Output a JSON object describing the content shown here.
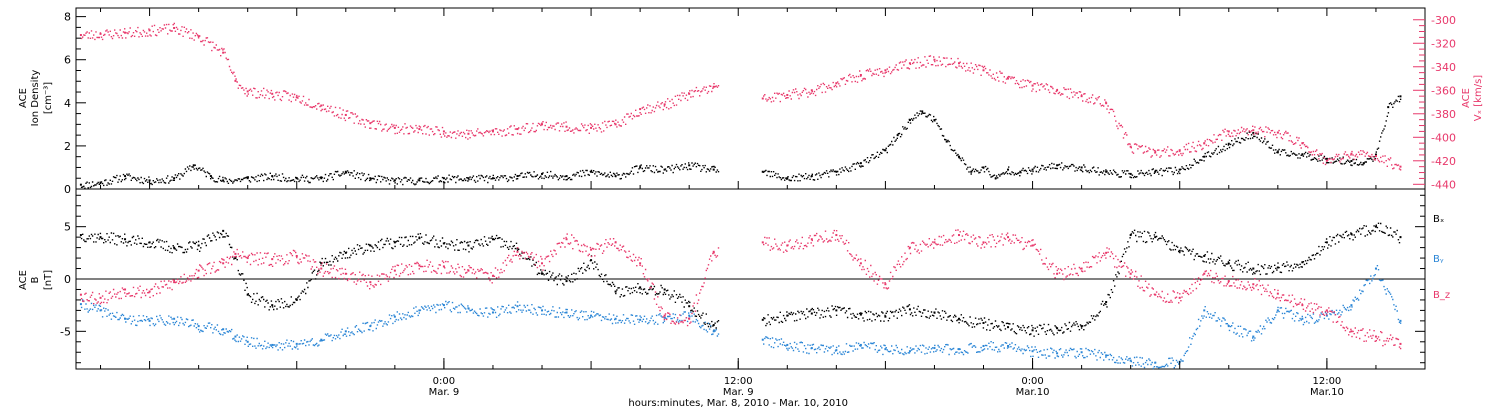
{
  "colors": {
    "axis": "#000000",
    "pink": "#e8386b",
    "blue": "#2b86d6",
    "black": "#000000"
  },
  "time_axis": {
    "label": "hours:minutes, Mar. 8, 2010 - Mar. 10, 2010",
    "units": "hours since 2010-03-08 00:00 UT",
    "range": [
      9,
      64
    ],
    "ticks": [
      {
        "t": 24,
        "time": "0:00",
        "date": "Mar. 9"
      },
      {
        "t": 36,
        "time": "12:00",
        "date": "Mar. 9"
      },
      {
        "t": 48,
        "time": "0:00",
        "date": "Mar.10"
      },
      {
        "t": 60,
        "time": "12:00",
        "date": "Mar.10"
      }
    ]
  },
  "chart_data": [
    {
      "type": "scatter",
      "panel": "top",
      "ylabel_left": [
        "ACE",
        "Ion Density",
        "[cm⁻³]"
      ],
      "ylabel_right": [
        "ACE",
        "Vₓ [km/s]"
      ],
      "left_axis": {
        "range": [
          0,
          8.4
        ],
        "ticks": [
          "0",
          "2",
          "4",
          "6",
          "8"
        ],
        "tick_values": [
          0,
          2,
          4,
          6,
          8
        ]
      },
      "right_axis": {
        "range": [
          -444,
          -290
        ],
        "ticks": [
          "-300",
          "-320",
          "-340",
          "-360",
          "-380",
          "-400",
          "-420",
          "-440"
        ],
        "tick_values": [
          -300,
          -320,
          -340,
          -360,
          -380,
          -400,
          -420,
          -440
        ]
      },
      "data_gap": [
        35.2,
        37.0
      ],
      "series": [
        {
          "name": "",
          "axis": "left",
          "color": "#000000",
          "x": [
            9.2,
            10,
            11,
            12,
            13,
            13.8,
            14.5,
            15,
            16,
            17,
            18,
            19,
            20,
            21,
            22,
            23,
            24,
            25,
            26,
            27,
            28,
            29,
            30,
            31,
            32,
            33,
            34,
            35,
            37,
            38,
            39,
            40,
            41,
            42,
            42.5,
            43,
            43.5,
            44,
            44.5,
            45,
            45.5,
            46,
            46.5,
            47,
            47.5,
            48,
            49,
            50,
            51,
            52,
            53,
            54,
            55,
            56,
            57,
            58,
            59,
            60,
            61,
            61.5,
            62,
            62.5,
            63
          ],
          "y": [
            0.2,
            0.3,
            0.6,
            0.4,
            0.5,
            1.1,
            0.6,
            0.4,
            0.5,
            0.6,
            0.5,
            0.5,
            0.8,
            0.5,
            0.4,
            0.4,
            0.5,
            0.5,
            0.5,
            0.6,
            0.7,
            0.6,
            0.8,
            0.6,
            1.0,
            0.9,
            1.1,
            0.9,
            0.8,
            0.5,
            0.6,
            0.8,
            1.2,
            1.8,
            2.5,
            3.2,
            3.6,
            3.2,
            2.2,
            1.5,
            0.8,
            1.0,
            0.5,
            0.9,
            0.8,
            0.9,
            1.1,
            1.0,
            0.8,
            0.7,
            0.8,
            0.9,
            1.5,
            2.1,
            2.6,
            1.7,
            1.6,
            1.4,
            1.3,
            1.2,
            1.6,
            3.8,
            4.3
          ]
        },
        {
          "name": "",
          "axis": "right",
          "color": "#e8386b",
          "x": [
            9.2,
            10,
            11,
            12,
            13,
            14,
            15,
            15.5,
            16,
            17,
            18,
            19,
            20,
            21,
            22,
            23,
            24,
            25,
            26,
            27,
            28,
            29,
            30,
            31,
            32,
            33,
            34,
            35,
            37,
            38,
            39,
            40,
            41,
            42,
            43,
            44,
            45,
            46,
            47,
            48,
            49,
            50,
            51,
            52,
            53,
            54,
            55,
            56,
            57,
            58,
            59,
            60,
            61,
            62,
            63
          ],
          "y": [
            -313,
            -312,
            -311,
            -309,
            -307,
            -314,
            -328,
            -352,
            -361,
            -363,
            -366,
            -373,
            -381,
            -388,
            -392,
            -393,
            -395,
            -397,
            -395,
            -393,
            -389,
            -391,
            -392,
            -389,
            -376,
            -372,
            -363,
            -357,
            -367,
            -364,
            -360,
            -354,
            -347,
            -343,
            -337,
            -334,
            -337,
            -343,
            -350,
            -356,
            -360,
            -365,
            -371,
            -408,
            -413,
            -411,
            -405,
            -395,
            -394,
            -396,
            -405,
            -420,
            -414,
            -416,
            -425
          ]
        }
      ]
    },
    {
      "type": "scatter",
      "panel": "bottom",
      "ylabel_left": [
        "ACE",
        "B",
        "[nT]"
      ],
      "left_axis": {
        "range": [
          -8.6,
          8.6
        ],
        "ticks": [
          "5",
          "0",
          "-5"
        ],
        "tick_values": [
          5,
          0,
          -5
        ],
        "zero_line": true
      },
      "data_gap": [
        35.2,
        37.0
      ],
      "series": [
        {
          "name": "Bₓ",
          "color": "#000000",
          "x": [
            9.2,
            10,
            11,
            12,
            13,
            14,
            15,
            15.5,
            16,
            17,
            18,
            19,
            20,
            21,
            22,
            23,
            24,
            25,
            26,
            27,
            28,
            29,
            30,
            31,
            32,
            33,
            34,
            35,
            37,
            38,
            39,
            40,
            41,
            42,
            43,
            44,
            45,
            46,
            47,
            48,
            49,
            50,
            51,
            52,
            53,
            54,
            55,
            56,
            57,
            58,
            59,
            60,
            61,
            62,
            63
          ],
          "y": [
            4.2,
            4.0,
            3.8,
            3.5,
            3.0,
            3.2,
            4.6,
            2.0,
            -1.5,
            -2.5,
            -2.0,
            1.5,
            2.5,
            3.2,
            3.5,
            3.9,
            3.4,
            3.2,
            3.8,
            2.9,
            0.5,
            -0.2,
            1.8,
            -1.2,
            -0.8,
            -1.0,
            -2.6,
            -4.4,
            -3.9,
            -3.5,
            -3.3,
            -3.0,
            -3.4,
            -3.6,
            -2.9,
            -3.2,
            -3.8,
            -4.2,
            -4.6,
            -4.9,
            -4.7,
            -4.5,
            -2.2,
            4.2,
            4.0,
            2.7,
            2.2,
            1.5,
            1.0,
            1.1,
            1.6,
            3.5,
            4.3,
            5.0,
            4.0
          ]
        },
        {
          "name": "Bᵧ",
          "color": "#2b86d6",
          "x": [
            9.2,
            10,
            11,
            12,
            13,
            14,
            15,
            15.5,
            16,
            17,
            18,
            19,
            20,
            21,
            22,
            23,
            24,
            25,
            26,
            27,
            28,
            29,
            30,
            31,
            32,
            33,
            34,
            35,
            37,
            38,
            39,
            40,
            41,
            42,
            43,
            44,
            45,
            46,
            47,
            48,
            49,
            50,
            51,
            52,
            53,
            54,
            55,
            56,
            57,
            58,
            59,
            60,
            61,
            62,
            63
          ],
          "y": [
            -2.4,
            -3.0,
            -3.8,
            -4.0,
            -3.8,
            -4.5,
            -4.8,
            -5.5,
            -6.0,
            -6.3,
            -6.2,
            -5.8,
            -5.0,
            -4.5,
            -3.6,
            -3.0,
            -2.5,
            -2.8,
            -3.2,
            -2.6,
            -3.0,
            -3.2,
            -3.5,
            -3.8,
            -3.9,
            -3.7,
            -3.5,
            -5.0,
            -5.8,
            -6.3,
            -6.6,
            -6.8,
            -6.3,
            -6.7,
            -6.9,
            -6.6,
            -6.7,
            -6.4,
            -6.4,
            -6.9,
            -7.1,
            -7.0,
            -7.3,
            -7.8,
            -8.0,
            -7.9,
            -3.0,
            -4.5,
            -5.5,
            -3.0,
            -3.8,
            -3.5,
            -2.5,
            1.0,
            -4.0
          ]
        },
        {
          "name": "B_z",
          "color": "#e8386b",
          "x": [
            9.2,
            10,
            11,
            12,
            13,
            14,
            15,
            15.5,
            16,
            17,
            18,
            19,
            20,
            21,
            22,
            23,
            24,
            25,
            26,
            27,
            28,
            29,
            30,
            31,
            32,
            33,
            34,
            35,
            37,
            38,
            39,
            40,
            41,
            42,
            43,
            44,
            45,
            46,
            47,
            48,
            49,
            50,
            51,
            52,
            53,
            54,
            55,
            56,
            57,
            58,
            59,
            60,
            61,
            62,
            63
          ],
          "y": [
            -1.5,
            -1.8,
            -1.0,
            -1.2,
            -0.3,
            0.8,
            1.5,
            2.4,
            2.0,
            1.9,
            2.2,
            1.0,
            0.5,
            -0.3,
            0.8,
            1.3,
            1.2,
            0.8,
            0.3,
            2.6,
            1.5,
            3.8,
            2.8,
            3.5,
            1.5,
            -3.5,
            -3.8,
            2.6,
            3.5,
            3.2,
            3.8,
            4.2,
            1.5,
            -0.5,
            3.0,
            3.5,
            4.2,
            3.5,
            4.0,
            3.2,
            0.5,
            1.0,
            2.5,
            0.5,
            -1.5,
            -1.8,
            0.5,
            -0.2,
            -0.5,
            -1.4,
            -2.5,
            -3.0,
            -5.0,
            -5.5,
            -6.2
          ]
        }
      ]
    }
  ]
}
